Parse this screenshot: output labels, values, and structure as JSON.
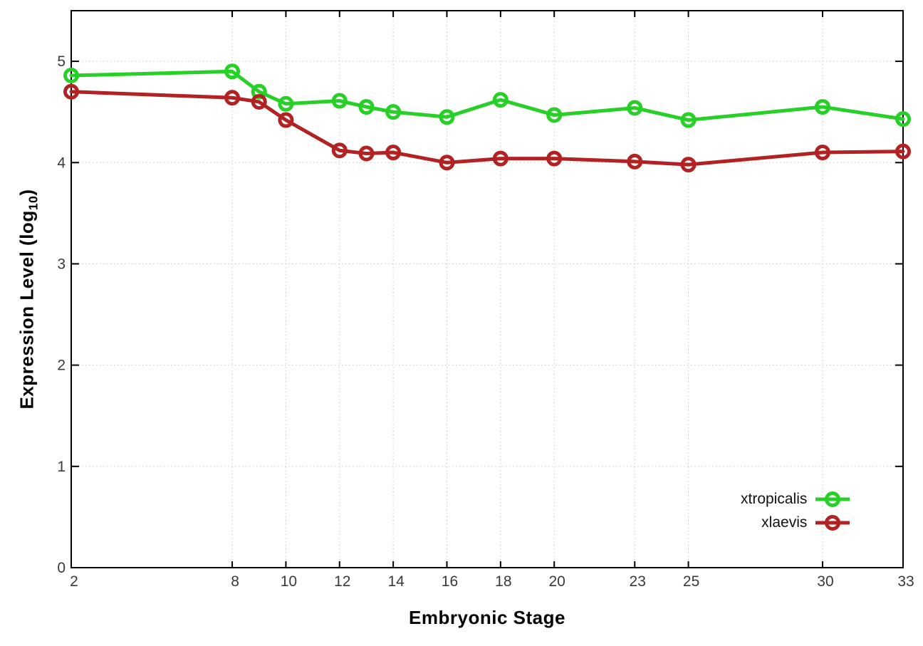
{
  "chart_data": {
    "type": "line",
    "title": "",
    "xlabel": "Embryonic Stage",
    "ylabel": {
      "prefix": "Expression Level (log",
      "sub": "10",
      "suffix": ")"
    },
    "x": [
      2,
      8,
      9,
      10,
      12,
      13,
      14,
      16,
      18,
      20,
      23,
      25,
      30,
      33
    ],
    "series": [
      {
        "name": "xtropicalis",
        "color": "#26d026",
        "values": [
          4.86,
          4.9,
          4.7,
          4.58,
          4.61,
          4.55,
          4.5,
          4.45,
          4.62,
          4.47,
          4.54,
          4.42,
          4.55,
          4.43
        ]
      },
      {
        "name": "xlaevis",
        "color": "#b22222",
        "values": [
          4.7,
          4.64,
          4.6,
          4.42,
          4.12,
          4.09,
          4.1,
          4.0,
          4.04,
          4.04,
          4.01,
          3.98,
          4.1,
          4.11
        ]
      }
    ],
    "xticks": [
      2,
      8,
      10,
      12,
      14,
      16,
      18,
      20,
      23,
      25,
      30,
      33
    ],
    "yticks": [
      0,
      1,
      2,
      3,
      4,
      5
    ],
    "xlim": [
      2,
      33
    ],
    "ylim": [
      0,
      5.5
    ],
    "grid": true,
    "legend_position": "inside-right-lower",
    "style": {
      "line_width": 5,
      "marker": "open-circle",
      "marker_radius": 8.5,
      "marker_stroke": 5,
      "grid_color": "#c8c8c8",
      "border_color": "#000000",
      "tick_label_color": "#3a3a3a",
      "background": "#ffffff"
    }
  },
  "legend": {
    "items": [
      {
        "label": "xtropicalis"
      },
      {
        "label": "xlaevis"
      }
    ]
  }
}
